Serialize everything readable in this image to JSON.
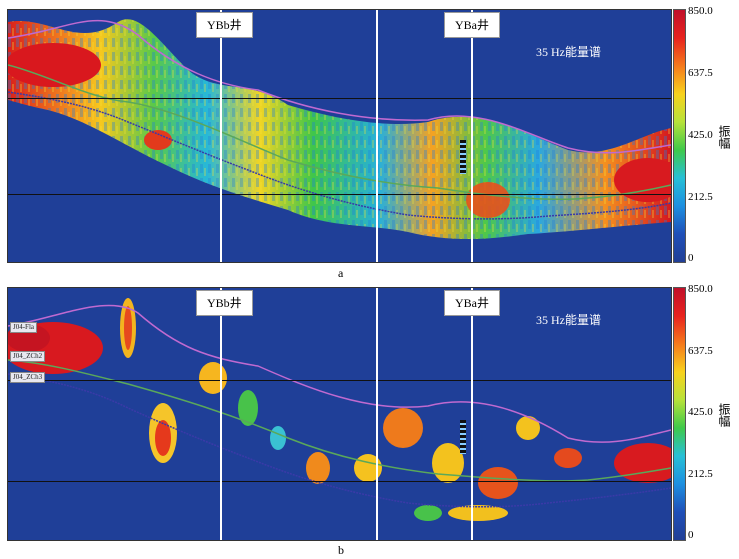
{
  "panels": [
    {
      "caption": "a",
      "wells": [
        "YBb井",
        "YBa井"
      ],
      "spectrum_label": "35 Hz能量谱",
      "horizon_tags": []
    },
    {
      "caption": "b",
      "wells": [
        "YBb井",
        "YBa井"
      ],
      "spectrum_label": "35 Hz能量谱",
      "horizon_tags": [
        "J04-Fla",
        "J04_ZCh2",
        "J04_ZCh3"
      ]
    }
  ],
  "colorbar": {
    "unit": "振幅",
    "ticks": [
      "850.0",
      "637.5",
      "425.0",
      "212.5",
      "0"
    ],
    "colors": [
      "#c0102a",
      "#e8231e",
      "#f57a1c",
      "#f8d21c",
      "#b7e23a",
      "#3fc94a",
      "#27c0d6",
      "#1d8fe0",
      "#1f4fb8",
      "#213f96"
    ]
  }
}
